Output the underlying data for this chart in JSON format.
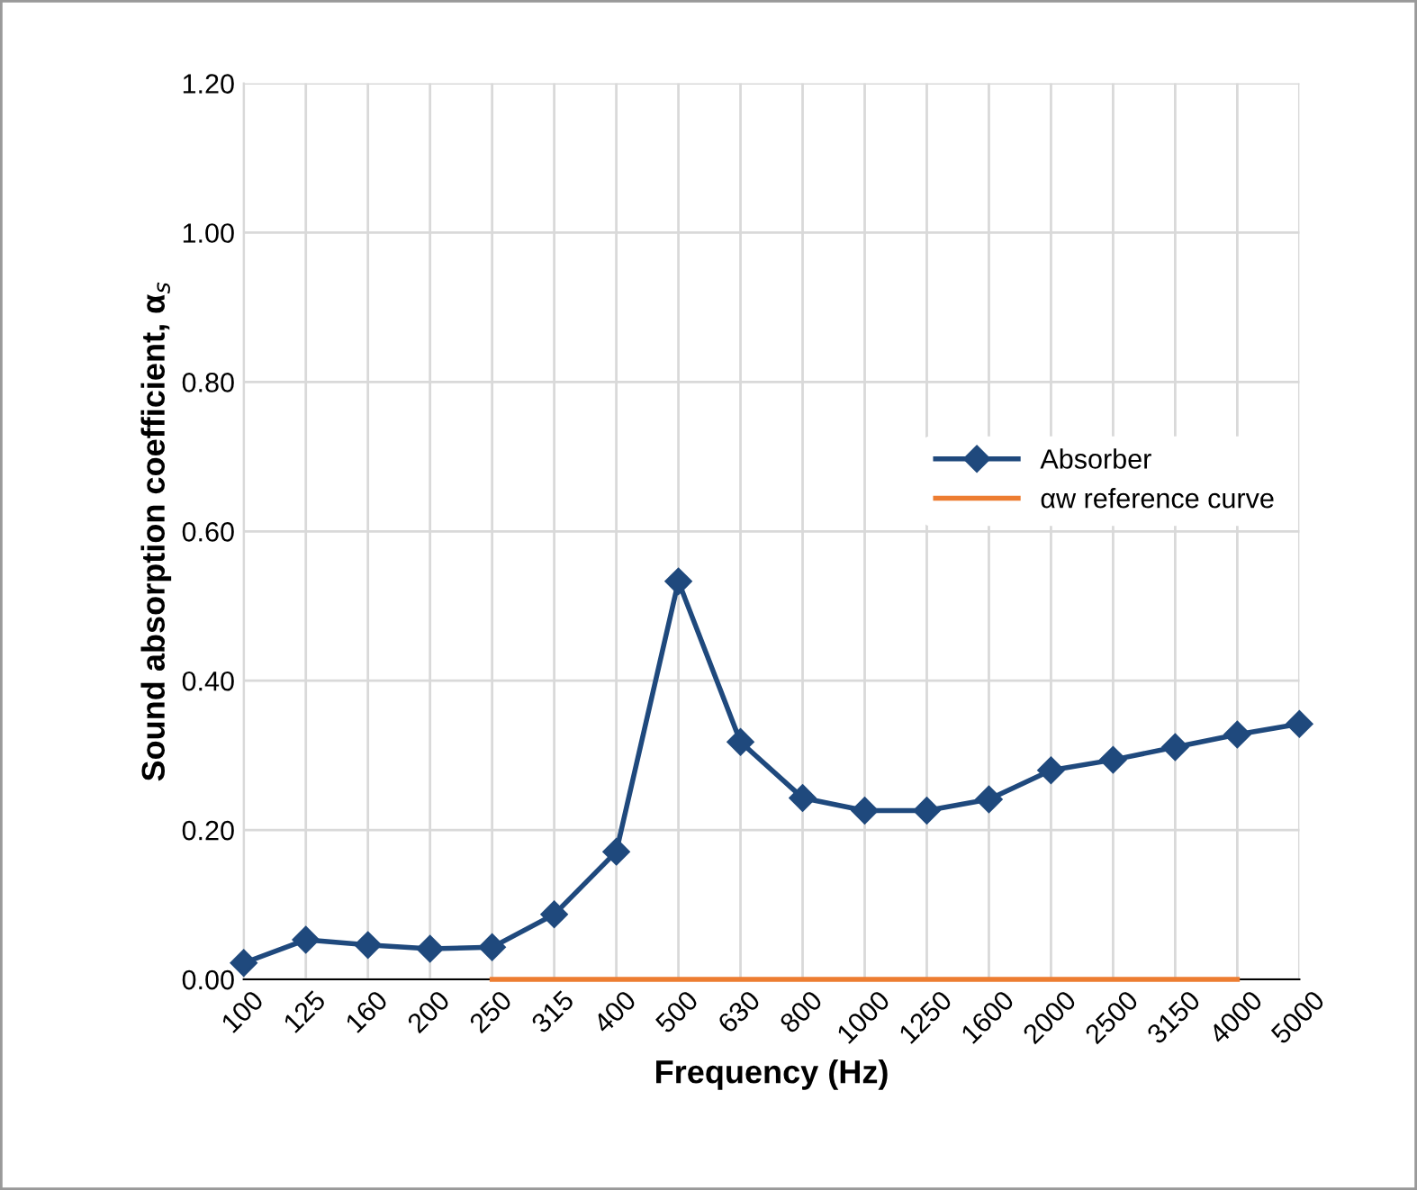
{
  "chart_data": {
    "type": "line",
    "xlabel": "Frequency (Hz)",
    "ylabel": "Sound absorption coefficient, α$_{s}$",
    "categories": [
      "100",
      "125",
      "160",
      "200",
      "250",
      "315",
      "400",
      "500",
      "630",
      "800",
      "1000",
      "1250",
      "1600",
      "2000",
      "2500",
      "3150",
      "4000",
      "5000"
    ],
    "series": [
      {
        "name": "Absorber",
        "color": "#1f497d",
        "marker": "diamond",
        "values": [
          0.022,
          0.053,
          0.046,
          0.041,
          0.043,
          0.087,
          0.171,
          0.533,
          0.318,
          0.243,
          0.226,
          0.226,
          0.241,
          0.28,
          0.294,
          0.311,
          0.328,
          0.342
        ]
      },
      {
        "name": "αw reference curve",
        "color": "#ed7d31",
        "marker": "none",
        "values": [
          null,
          null,
          null,
          null,
          0,
          0,
          0,
          0,
          0,
          0,
          0,
          0,
          0,
          0,
          0,
          0,
          0,
          null
        ]
      }
    ],
    "ylim": [
      0,
      1.2
    ],
    "yticks": [
      {
        "value": 0,
        "label": "0.00"
      },
      {
        "value": 0.2,
        "label": "0.20"
      },
      {
        "value": 0.4,
        "label": "0.40"
      },
      {
        "value": 0.6,
        "label": "0.60"
      },
      {
        "value": 0.8,
        "label": "0.80"
      },
      {
        "value": 1.0,
        "label": "1.00"
      },
      {
        "value": 1.2,
        "label": "1.20"
      }
    ],
    "grid": true,
    "legend": "right",
    "line_style": "solid"
  }
}
